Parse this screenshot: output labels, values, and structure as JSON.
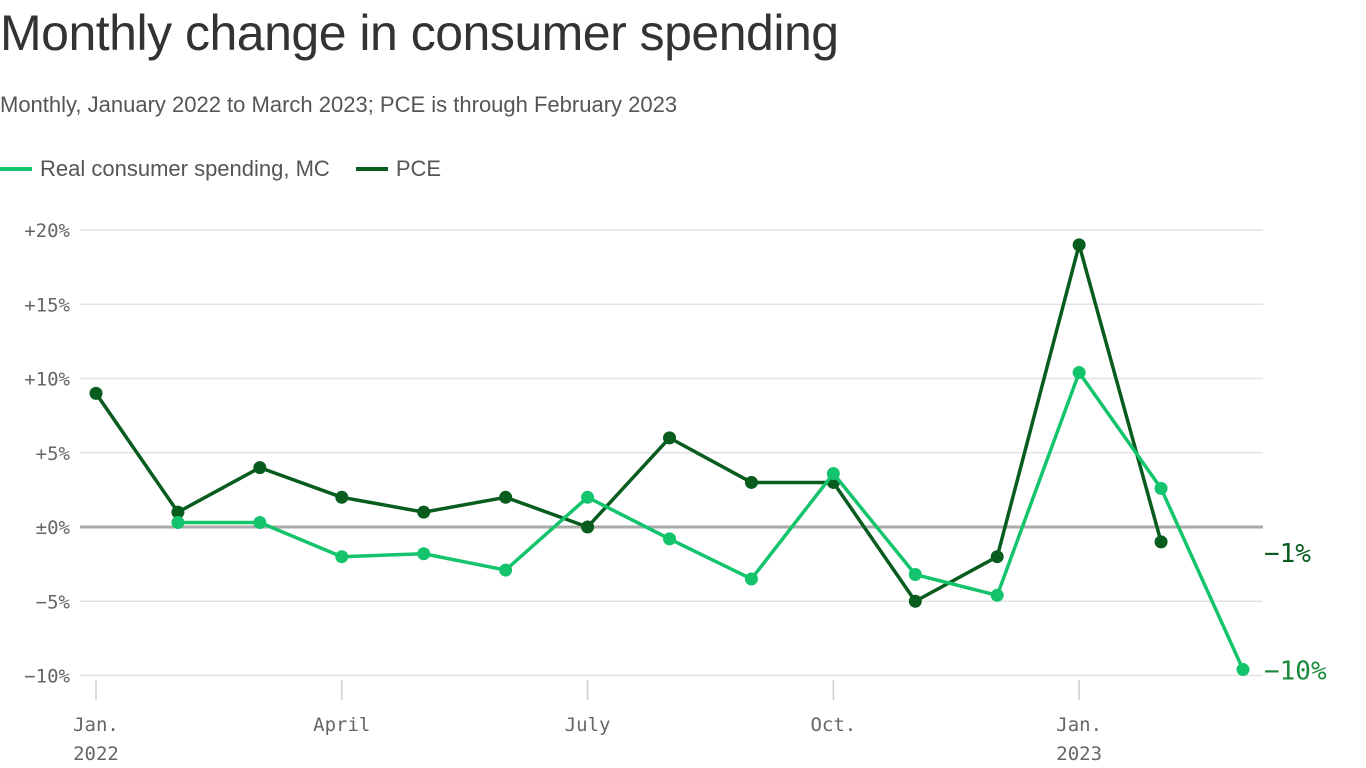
{
  "chart_data": {
    "type": "line",
    "title": "Monthly change in consumer spending",
    "subtitle": "Monthly, January 2022 to March 2023; PCE is through February 2023",
    "x": [
      "2022-01",
      "2022-02",
      "2022-03",
      "2022-04",
      "2022-05",
      "2022-06",
      "2022-07",
      "2022-08",
      "2022-09",
      "2022-10",
      "2022-11",
      "2022-12",
      "2023-01",
      "2023-02",
      "2023-03"
    ],
    "x_tick_labels": [
      {
        "index": 0,
        "line1": "Jan.",
        "line2": "2022"
      },
      {
        "index": 3,
        "line1": "April",
        "line2": ""
      },
      {
        "index": 6,
        "line1": "July",
        "line2": ""
      },
      {
        "index": 9,
        "line1": "Oct.",
        "line2": ""
      },
      {
        "index": 12,
        "line1": "Jan.",
        "line2": "2023"
      }
    ],
    "y_ticks": [
      {
        "value": 20,
        "label": "+20%"
      },
      {
        "value": 15,
        "label": "+15%"
      },
      {
        "value": 10,
        "label": "+10%"
      },
      {
        "value": 5,
        "label": "+5%"
      },
      {
        "value": 0,
        "label": "±0%"
      },
      {
        "value": -5,
        "label": "−5%"
      },
      {
        "value": -10,
        "label": "−10%"
      }
    ],
    "ylim": [
      -10,
      20
    ],
    "grid": true,
    "legend_placement": "top-left",
    "series": [
      {
        "name": "Real consumer spending, MC",
        "color": "#14c46c",
        "values": [
          null,
          0.3,
          0.3,
          -2.0,
          -1.8,
          -2.9,
          2.0,
          -0.8,
          -3.5,
          3.6,
          -3.2,
          -4.6,
          10.4,
          2.6,
          -9.6
        ],
        "end_label": "−10%",
        "end_label_color": "#1b8a3c"
      },
      {
        "name": "PCE",
        "color": "#075c1e",
        "values": [
          9.0,
          1.0,
          4.0,
          2.0,
          1.0,
          2.0,
          0.0,
          6.0,
          3.0,
          3.0,
          -5.0,
          -2.0,
          19.0,
          -1.0,
          null
        ],
        "end_label": "−1%",
        "end_label_color": "#075c1e"
      }
    ]
  }
}
